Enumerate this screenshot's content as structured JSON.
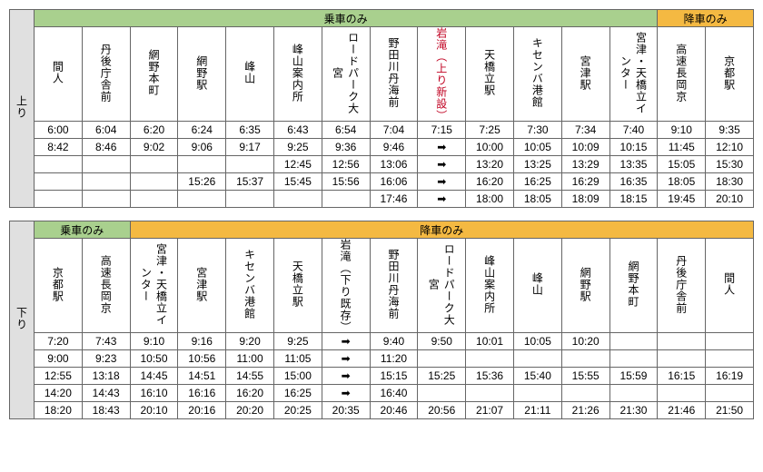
{
  "upbound": {
    "side_label": "上り",
    "headers": {
      "board": "乗車のみ",
      "alight": "降車のみ"
    },
    "stops": [
      {
        "name": "間人"
      },
      {
        "name": "丹後庁舎前"
      },
      {
        "name": "網野本町"
      },
      {
        "name": "網野駅"
      },
      {
        "name": "峰山"
      },
      {
        "name": "峰山案内所"
      },
      {
        "name": "ロードパーク大宮"
      },
      {
        "name": "野田川丹海前"
      },
      {
        "name": "岩滝（上り新設）",
        "red": true
      },
      {
        "name": "天橋立駅"
      },
      {
        "name": "キセンバ港館"
      },
      {
        "name": "宮津駅"
      },
      {
        "name": "宮津・天橋立インター"
      },
      {
        "name": "高速長岡京"
      },
      {
        "name": "京都駅"
      }
    ],
    "rows": [
      [
        "6:00",
        "6:04",
        "6:20",
        "6:24",
        "6:35",
        "6:43",
        "6:54",
        "7:04",
        "7:15",
        "7:25",
        "7:30",
        "7:34",
        "7:40",
        "9:10",
        "9:35"
      ],
      [
        "8:42",
        "8:46",
        "9:02",
        "9:06",
        "9:17",
        "9:25",
        "9:36",
        "9:46",
        "➡",
        "10:00",
        "10:05",
        "10:09",
        "10:15",
        "11:45",
        "12:10"
      ],
      [
        "",
        "",
        "",
        "",
        "",
        "12:45",
        "12:56",
        "13:06",
        "➡",
        "13:20",
        "13:25",
        "13:29",
        "13:35",
        "15:05",
        "15:30"
      ],
      [
        "",
        "",
        "",
        "15:26",
        "15:37",
        "15:45",
        "15:56",
        "16:06",
        "➡",
        "16:20",
        "16:25",
        "16:29",
        "16:35",
        "18:05",
        "18:30"
      ],
      [
        "",
        "",
        "",
        "",
        "",
        "",
        "",
        "17:46",
        "➡",
        "18:00",
        "18:05",
        "18:09",
        "18:15",
        "19:45",
        "20:10"
      ]
    ]
  },
  "downbound": {
    "side_label": "下り",
    "headers": {
      "board": "乗車のみ",
      "alight": "降車のみ"
    },
    "stops": [
      {
        "name": "京都駅"
      },
      {
        "name": "高速長岡京"
      },
      {
        "name": "宮津・天橋立インター"
      },
      {
        "name": "宮津駅"
      },
      {
        "name": "キセンバ港館"
      },
      {
        "name": "天橋立駅"
      },
      {
        "name": "岩滝（下り既存）"
      },
      {
        "name": "野田川丹海前"
      },
      {
        "name": "ロードパーク大宮"
      },
      {
        "name": "峰山案内所"
      },
      {
        "name": "峰山"
      },
      {
        "name": "網野駅"
      },
      {
        "name": "網野本町"
      },
      {
        "name": "丹後庁舎前"
      },
      {
        "name": "間人"
      }
    ],
    "rows": [
      [
        "7:20",
        "7:43",
        "9:10",
        "9:16",
        "9:20",
        "9:25",
        "➡",
        "9:40",
        "9:50",
        "10:01",
        "10:05",
        "10:20",
        "",
        "",
        ""
      ],
      [
        "9:00",
        "9:23",
        "10:50",
        "10:56",
        "11:00",
        "11:05",
        "➡",
        "11:20",
        "",
        "",
        "",
        "",
        "",
        "",
        ""
      ],
      [
        "12:55",
        "13:18",
        "14:45",
        "14:51",
        "14:55",
        "15:00",
        "➡",
        "15:15",
        "15:25",
        "15:36",
        "15:40",
        "15:55",
        "15:59",
        "16:15",
        "16:19"
      ],
      [
        "14:20",
        "14:43",
        "16:10",
        "16:16",
        "16:20",
        "16:25",
        "➡",
        "16:40",
        "",
        "",
        "",
        "",
        "",
        "",
        ""
      ],
      [
        "18:20",
        "18:43",
        "20:10",
        "20:16",
        "20:20",
        "20:25",
        "20:35",
        "20:46",
        "20:56",
        "21:07",
        "21:11",
        "21:26",
        "21:30",
        "21:46",
        "21:50"
      ]
    ]
  },
  "style": {
    "green": "#a9d08e",
    "gold": "#f4b942",
    "gray": "#e0e0e0",
    "red": "#c00020",
    "border": "#666666"
  }
}
